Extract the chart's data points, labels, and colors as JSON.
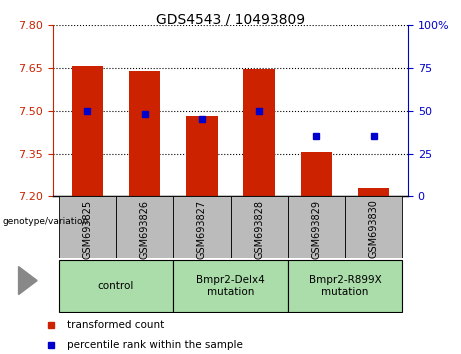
{
  "title": "GDS4543 / 10493809",
  "samples": [
    "GSM693825",
    "GSM693826",
    "GSM693827",
    "GSM693828",
    "GSM693829",
    "GSM693830"
  ],
  "bar_values": [
    7.655,
    7.638,
    7.48,
    7.645,
    7.355,
    7.23
  ],
  "bar_base": 7.2,
  "blue_dots": [
    50,
    48,
    45,
    50,
    35,
    35
  ],
  "ylim_left": [
    7.2,
    7.8
  ],
  "ylim_right": [
    0,
    100
  ],
  "yticks_left": [
    7.2,
    7.35,
    7.5,
    7.65,
    7.8
  ],
  "yticks_right": [
    0,
    25,
    50,
    75,
    100
  ],
  "bar_color": "#cc2200",
  "dot_color": "#0000cc",
  "axis_left_color": "#cc2200",
  "axis_right_color": "#0000cc",
  "tick_label_bg": "#bbbbbb",
  "groups": [
    {
      "label": "control",
      "indices": [
        0,
        1
      ]
    },
    {
      "label": "Bmpr2-Delx4\nmutation",
      "indices": [
        2,
        3
      ]
    },
    {
      "label": "Bmpr2-R899X\nmutation",
      "indices": [
        4,
        5
      ]
    }
  ],
  "group_bg_color": "#aaddaa",
  "legend_red_label": "transformed count",
  "legend_blue_label": "percentile rank within the sample",
  "genotype_label": "genotype/variation"
}
